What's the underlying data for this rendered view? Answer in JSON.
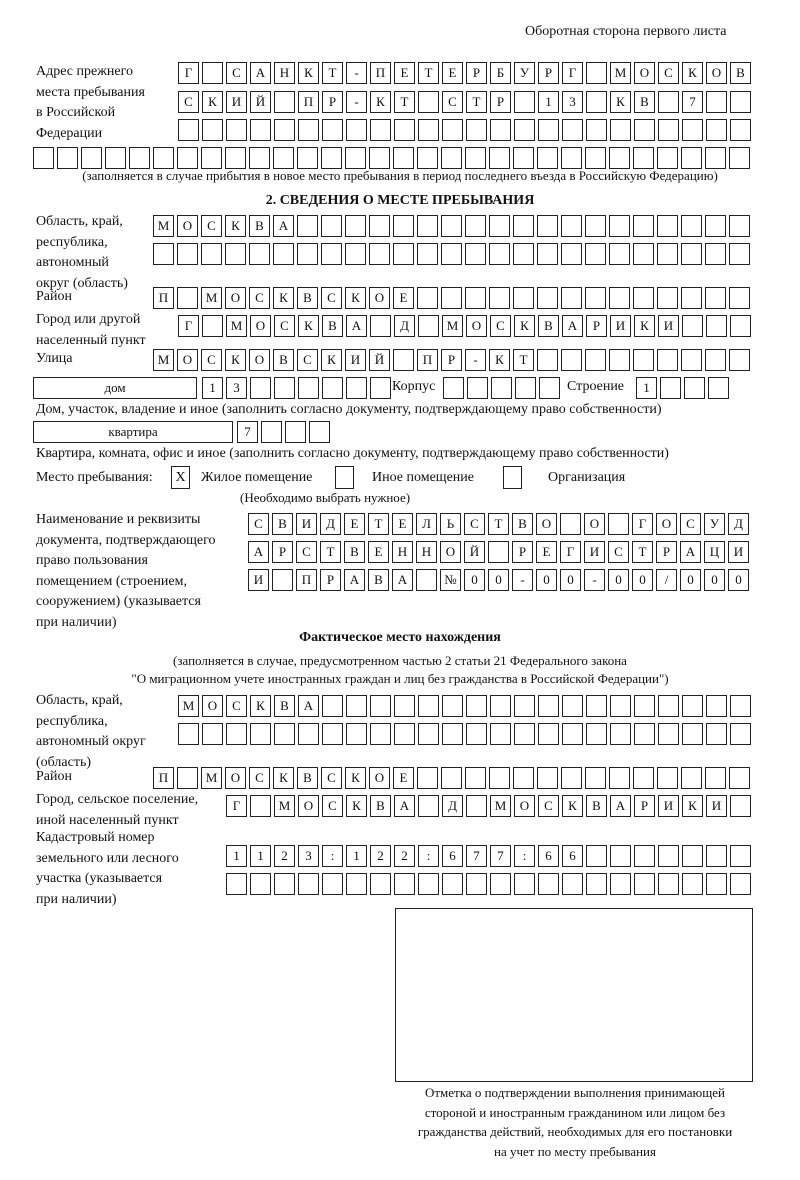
{
  "header": {
    "title": "Оборотная сторона первого листа"
  },
  "previous_address": {
    "label": [
      "Адрес прежнего",
      "места пребывания",
      "в Российской",
      "Федерации"
    ],
    "rows": [
      "Г САНКТ-ПЕТЕРБУРГ МОСКОВ",
      "СКИЙ ПР-КТ СТР 13 КВ 7",
      "",
      ""
    ],
    "note": "(заполняется в случае прибытия в новое место пребывания в период последнего въезда в Российскую Федерацию)"
  },
  "section2": {
    "title": "2. СВЕДЕНИЯ О МЕСТЕ ПРЕБЫВАНИЯ",
    "region": {
      "label": [
        "Область, край,",
        "республика,",
        "автономный",
        "округ (область)"
      ],
      "rows": [
        "МОСКВА",
        ""
      ]
    },
    "district": {
      "label": "Район",
      "value": "П МОСКВСКОЕ"
    },
    "city": {
      "label": [
        "Город или другой",
        "населенный пункт"
      ],
      "value": "Г МОСКВА Д МОСКВАРИКИ"
    },
    "street": {
      "label": "Улица",
      "value": "МОСКОВСКИЙ ПР-КТ"
    },
    "house": {
      "type": "дом",
      "number": "13",
      "korpus_label": "Корпус",
      "korpus": "",
      "stroenie_label": "Строение",
      "stroenie": "1",
      "note": "Дом, участок, владение и иное (заполнить согласно документу, подтверждающему право собственности)"
    },
    "apartment": {
      "type": "квартира",
      "number": "7",
      "note": "Квартира, комната, офис и иное (заполнить согласно документу, подтверждающему право собственности)"
    },
    "place": {
      "label": "Место пребывания:",
      "options": [
        {
          "label": "Жилое помещение",
          "mark": "X",
          "checked": true
        },
        {
          "label": "Иное помещение",
          "mark": "",
          "checked": false
        },
        {
          "label": "Организация",
          "mark": "",
          "checked": false
        }
      ],
      "note": "(Необходимо выбрать нужное)"
    },
    "document": {
      "label": [
        "Наименование и реквизиты",
        "документа, подтверждающего",
        "право пользования",
        "помещением (строением,",
        "сооружением) (указывается",
        "при наличии)"
      ],
      "rows": [
        "СВИДЕТЕЛЬСТВО О ГОСУД",
        "АРСТВЕННОЙ РЕГИСТРАЦИ",
        "И ПРАВА №00-00-00/000"
      ]
    }
  },
  "actual": {
    "title": "Фактическое место нахождения",
    "note": [
      "(заполняется в случае, предусмотренном частью 2 статьи 21 Федерального закона",
      "\"О миграционном учете иностранных граждан и лиц без гражданства в Российской Федерации\")"
    ],
    "region": {
      "label": [
        "Область, край,",
        "республика,",
        "автономный округ",
        "(область)"
      ],
      "rows": [
        "МОСКВА",
        ""
      ]
    },
    "district": {
      "label": "Район",
      "value": "П МОСКВСКОЕ"
    },
    "city": {
      "label": [
        "Город, сельское поселение,",
        "иной населенный пункт"
      ],
      "value": "Г МОСКВА Д МОСКВАРИКИ"
    },
    "cadastral": {
      "label": [
        "Кадастровый номер",
        "земельного или лесного",
        "участка (указывается",
        "при наличии)"
      ],
      "rows": [
        "1123:122:677:66",
        ""
      ]
    }
  },
  "confirmation": {
    "caption": [
      "Отметка о подтверждении выполнения принимающей",
      "стороной и иностранным гражданином или лицом без",
      "гражданства действий, необходимых для его постановки",
      "на учет по месту пребывания"
    ]
  }
}
